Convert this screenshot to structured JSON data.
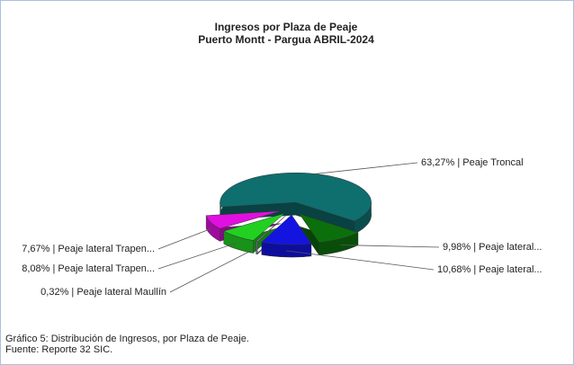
{
  "chart_data": {
    "type": "pie3d",
    "title": "Ingresos por Plaza de Peaje",
    "subtitle": "Puerto Montt - Pargua ABRIL-2024",
    "values": [
      63.27,
      9.98,
      10.68,
      0.32,
      8.08,
      7.67
    ],
    "value_labels": [
      "63,27% | Peaje Troncal",
      "9,98% | Peaje lateral...",
      "10,68% | Peaje lateral...",
      "0,32% | Peaje lateral Maullín",
      "8,08% | Peaje lateral Trapen...",
      "7,67% | Peaje lateral Trapen..."
    ],
    "colors": [
      "#0f6e6e",
      "#0b700b",
      "#1414e0",
      "#9a8fc8",
      "#22d022",
      "#e010e0"
    ]
  },
  "caption": [
    "Gráfico 5: Distribución de Ingresos, por Plaza de Peaje.",
    "Fuente:  Reporte  32 SIC."
  ]
}
